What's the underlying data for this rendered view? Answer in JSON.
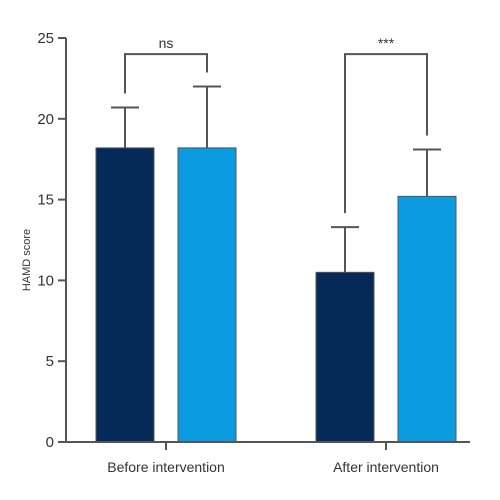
{
  "chart_data": {
    "type": "bar",
    "ylabel": "HAMD score",
    "ylim": [
      0,
      25
    ],
    "yticks": [
      0,
      5,
      10,
      15,
      20,
      25
    ],
    "categories": [
      "Before intervention",
      "After intervention"
    ],
    "series": [
      {
        "color": "#062a57",
        "values": [
          18.2,
          10.5
        ],
        "errors": [
          2.5,
          2.8
        ]
      },
      {
        "color": "#0a9be0",
        "values": [
          18.2,
          15.2
        ],
        "errors": [
          3.8,
          2.9
        ]
      }
    ],
    "significance": [
      {
        "category": "Before intervention",
        "label": "ns"
      },
      {
        "category": "After intervention",
        "label": "***"
      }
    ],
    "grid": false,
    "legend": "none"
  }
}
